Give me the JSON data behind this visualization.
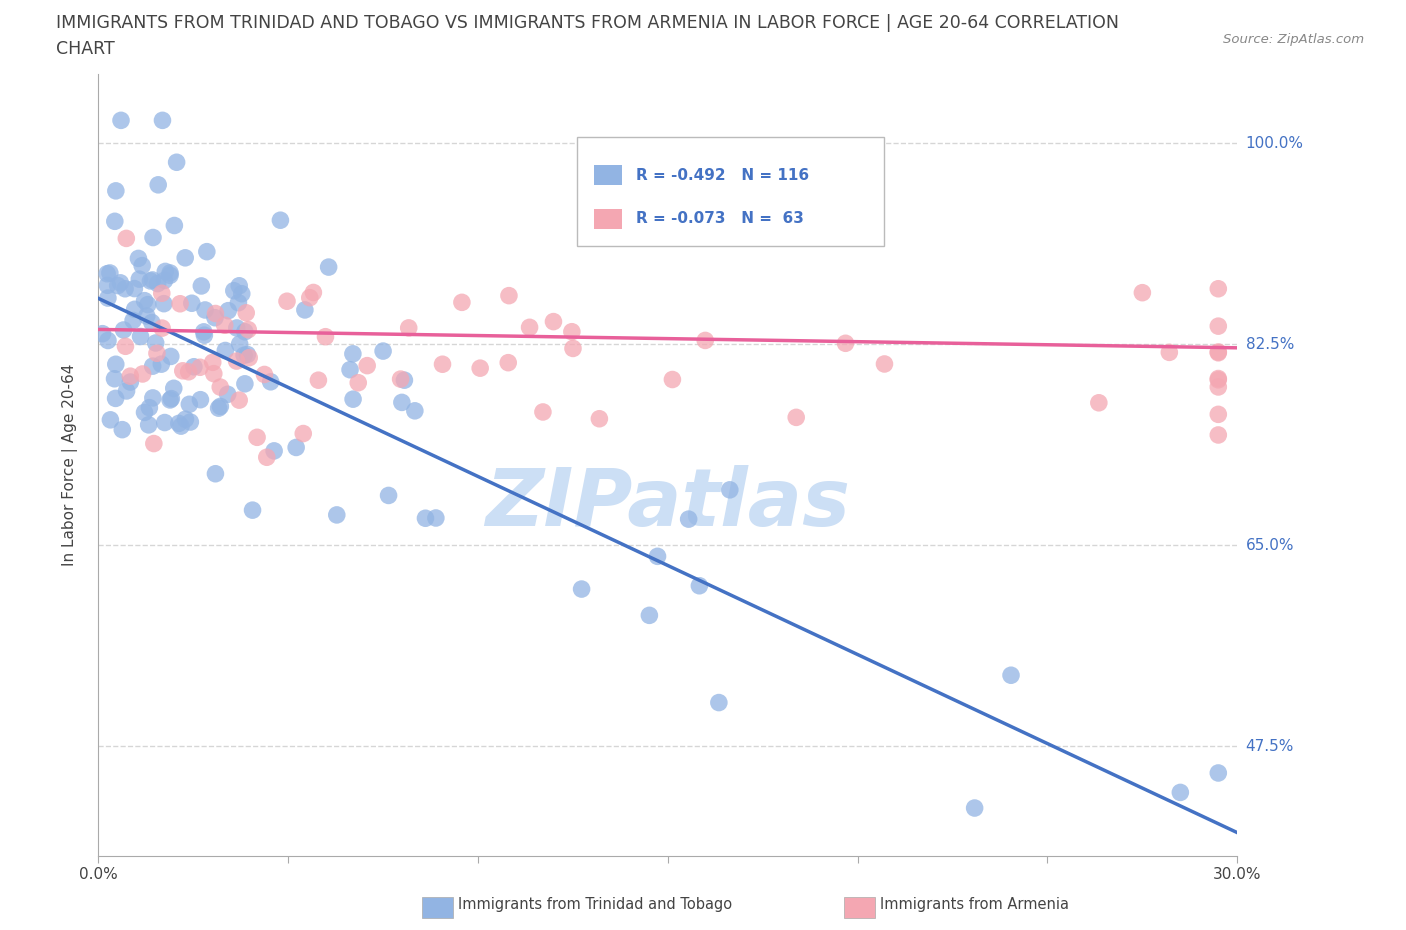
{
  "title_line1": "IMMIGRANTS FROM TRINIDAD AND TOBAGO VS IMMIGRANTS FROM ARMENIA IN LABOR FORCE | AGE 20-64 CORRELATION",
  "title_line2": "CHART",
  "source_text": "Source: ZipAtlas.com",
  "ylabel": "In Labor Force | Age 20-64",
  "xlim": [
    0.0,
    0.3
  ],
  "ylim": [
    0.38,
    1.06
  ],
  "xticks": [
    0.0,
    0.05,
    0.1,
    0.15,
    0.2,
    0.25,
    0.3
  ],
  "xticklabels": [
    "0.0%",
    "",
    "",
    "",
    "",
    "",
    "30.0%"
  ],
  "ytick_positions": [
    0.475,
    0.65,
    0.825,
    1.0
  ],
  "yticklabels": [
    "47.5%",
    "65.0%",
    "82.5%",
    "100.0%"
  ],
  "color_blue": "#92b4e3",
  "color_pink": "#f4a7b2",
  "line_color_blue": "#4472c4",
  "line_color_pink": "#e8609a",
  "watermark_text": "ZIPatlas",
  "watermark_color": "#ccdff5",
  "background_color": "#ffffff",
  "grid_color": "#cccccc",
  "R_blue": -0.492,
  "N_blue": 116,
  "R_pink": -0.073,
  "N_pink": 63,
  "legend_label_blue": "Immigrants from Trinidad and Tobago",
  "legend_label_pink": "Immigrants from Armenia",
  "text_color_dark": "#444444",
  "text_color_blue": "#4472c4"
}
